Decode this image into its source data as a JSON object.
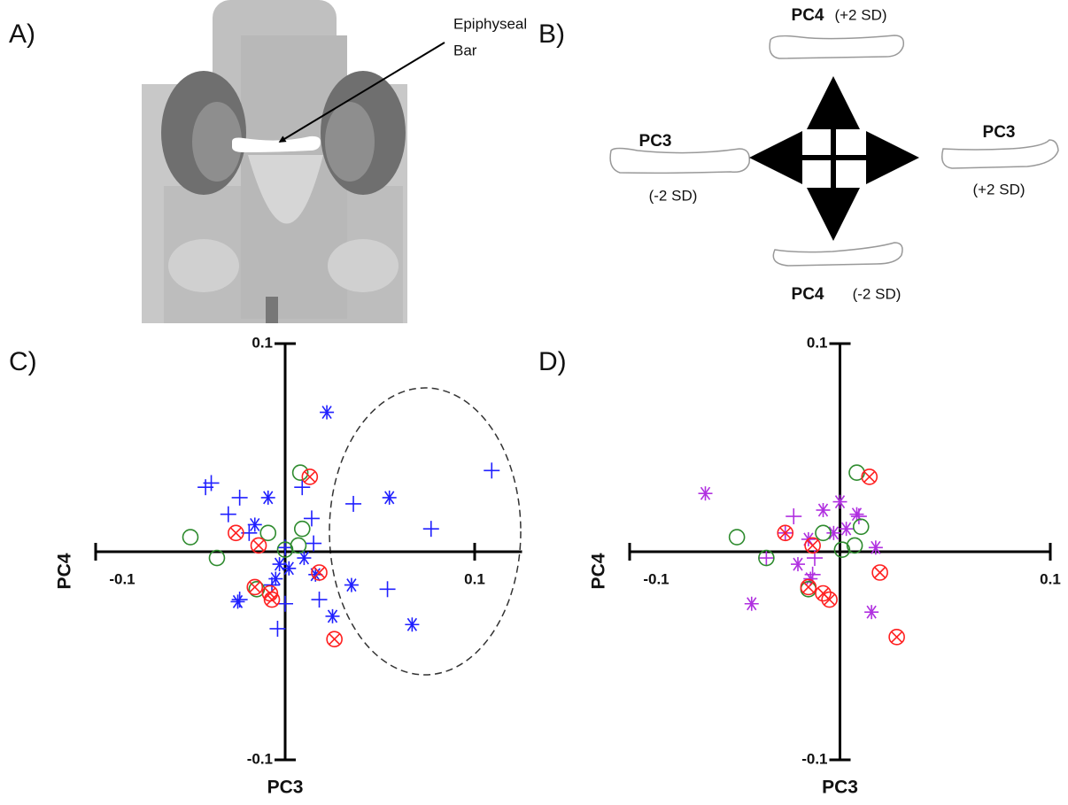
{
  "panel_a": {
    "panel_label": "A)",
    "annotation": [
      "Epiphyseal",
      "Bar"
    ]
  },
  "panel_b": {
    "panel_label": "B)",
    "top": {
      "label": "PC4",
      "sd": "(+2 SD)"
    },
    "left": {
      "label": "PC3",
      "sd": "(-2 SD)"
    },
    "right": {
      "label": "PC3",
      "sd": "(+2 SD)"
    },
    "bottom": {
      "label": "PC4",
      "sd": "(-2 SD)"
    }
  },
  "chart_data": [
    {
      "type": "scatter",
      "panel_label": "C)",
      "xlabel": "PC3",
      "ylabel": "PC4",
      "xlim": [
        -0.1,
        0.125
      ],
      "ylim": [
        -0.1,
        0.1
      ],
      "xticks": [
        -0.1,
        0.1
      ],
      "yticks": [
        -0.1,
        0.1
      ],
      "series": [
        {
          "marker": "star",
          "color": "#2020ff",
          "x": [
            0.022,
            -0.009,
            0.055,
            -0.016,
            -0.003,
            0.002,
            0.01,
            0.016,
            -0.005,
            -0.025,
            0.035,
            0.025,
            0.067
          ],
          "y": [
            0.067,
            0.026,
            0.026,
            0.013,
            -0.006,
            -0.008,
            -0.003,
            -0.011,
            -0.013,
            -0.024,
            -0.016,
            -0.031,
            -0.035
          ]
        },
        {
          "marker": "plus",
          "color": "#2020ff",
          "x": [
            -0.039,
            -0.042,
            -0.024,
            -0.03,
            -0.019,
            0.009,
            0.014,
            0.036,
            0.077,
            0.109,
            0.0,
            -0.007,
            0.0,
            0.018,
            0.054,
            -0.004,
            -0.024,
            0.015
          ],
          "y": [
            0.033,
            0.031,
            0.026,
            0.018,
            0.009,
            0.031,
            0.016,
            0.023,
            0.011,
            0.039,
            0.002,
            -0.016,
            -0.025,
            -0.023,
            -0.018,
            -0.037,
            -0.023,
            0.004
          ]
        },
        {
          "marker": "circle",
          "color": "#2e8b2e",
          "x": [
            -0.05,
            -0.036,
            -0.009,
            0.008,
            0.009,
            0.0,
            0.007,
            -0.015
          ],
          "y": [
            0.007,
            -0.003,
            0.009,
            0.038,
            0.011,
            0.001,
            0.003,
            -0.018
          ]
        },
        {
          "marker": "circle-x",
          "color": "#ff2020",
          "x": [
            -0.026,
            0.013,
            -0.014,
            0.018,
            -0.016,
            -0.008,
            -0.007,
            0.026
          ],
          "y": [
            0.009,
            0.036,
            0.003,
            -0.01,
            -0.017,
            -0.02,
            -0.023,
            -0.042
          ]
        }
      ]
    },
    {
      "type": "scatter",
      "panel_label": "D)",
      "xlabel": "PC3",
      "ylabel": "PC4",
      "xlim": [
        -0.1,
        0.1
      ],
      "ylim": [
        -0.1,
        0.1
      ],
      "xticks": [
        -0.1,
        0.1
      ],
      "yticks": [
        -0.1,
        0.1
      ],
      "series": [
        {
          "marker": "star",
          "color": "#b030e0",
          "x": [
            -0.064,
            0.0,
            -0.008,
            -0.015,
            0.003,
            0.008,
            0.017,
            -0.02,
            -0.014,
            -0.042,
            0.015,
            -0.003
          ],
          "y": [
            0.028,
            0.024,
            0.02,
            0.006,
            0.011,
            0.018,
            0.002,
            -0.006,
            -0.013,
            -0.025,
            -0.029,
            0.009
          ]
        },
        {
          "marker": "plus",
          "color": "#b030e0",
          "x": [
            -0.022,
            -0.026,
            -0.035,
            -0.012,
            -0.013,
            0.009
          ],
          "y": [
            0.017,
            0.009,
            -0.003,
            -0.003,
            -0.011,
            0.017
          ]
        },
        {
          "marker": "circle",
          "color": "#2e8b2e",
          "x": [
            -0.049,
            -0.035,
            -0.008,
            0.008,
            0.01,
            0.001,
            0.007,
            -0.015
          ],
          "y": [
            0.007,
            -0.003,
            0.009,
            0.038,
            0.012,
            0.001,
            0.003,
            -0.018
          ]
        },
        {
          "marker": "circle-x",
          "color": "#ff2020",
          "x": [
            -0.026,
            0.014,
            -0.013,
            0.019,
            -0.015,
            -0.008,
            -0.005,
            0.027
          ],
          "y": [
            0.009,
            0.036,
            0.003,
            -0.01,
            -0.017,
            -0.02,
            -0.023,
            -0.041
          ]
        }
      ]
    }
  ]
}
